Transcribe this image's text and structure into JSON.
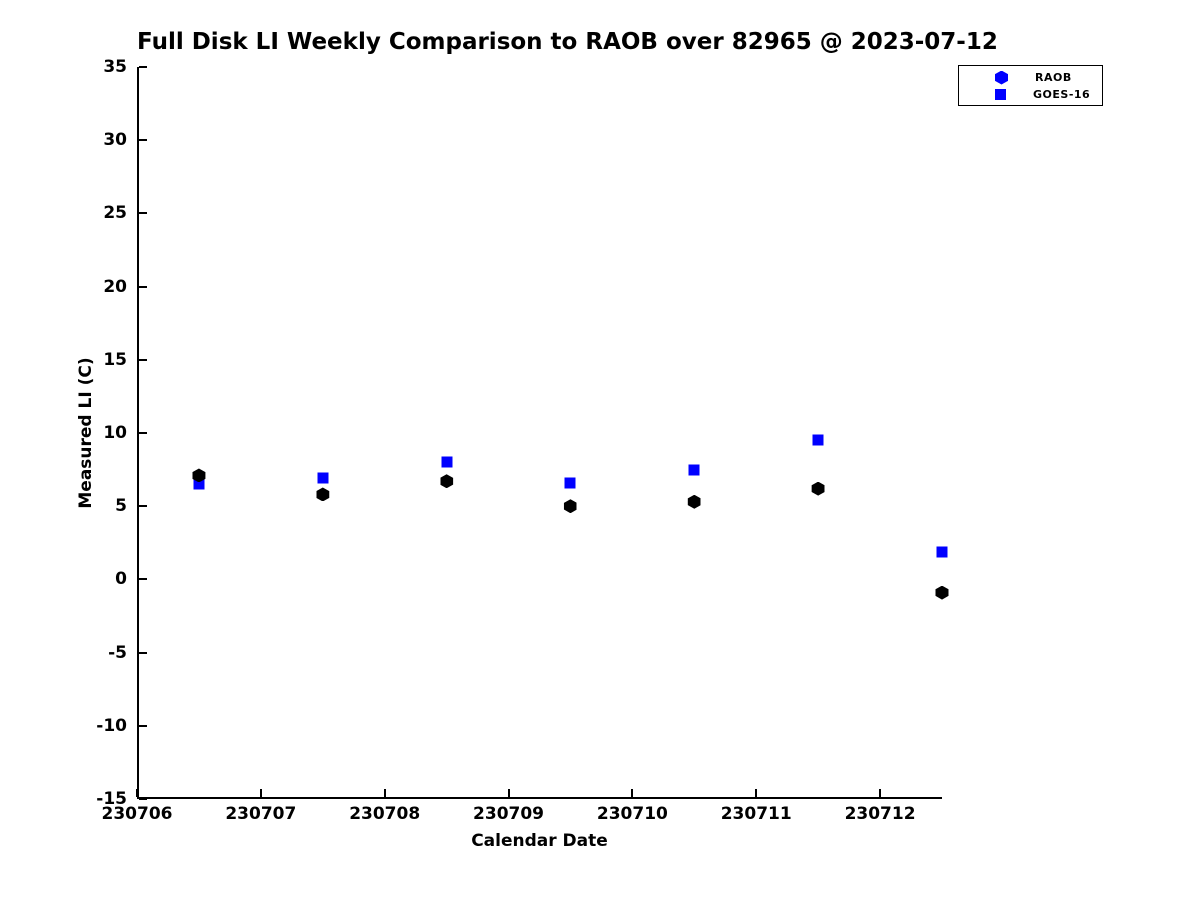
{
  "chart_data": {
    "type": "scatter",
    "title": "Full Disk LI Weekly Comparison to RAOB over 82965 @ 2023-07-12",
    "xlabel": "Calendar Date",
    "ylabel": "Measured LI (C)",
    "xlim": [
      230706,
      230712.5
    ],
    "ylim": [
      -15,
      35
    ],
    "x_ticks": [
      230706,
      230707,
      230708,
      230709,
      230710,
      230711,
      230712
    ],
    "y_ticks": [
      -15,
      -10,
      -5,
      0,
      5,
      10,
      15,
      20,
      25,
      30,
      35
    ],
    "grid": false,
    "axis_color": "#000000",
    "legend": {
      "position": "outside-top-right",
      "entries": [
        {
          "label": "RAOB",
          "marker": "hexagon",
          "color": "#0000FF"
        },
        {
          "label": "GOES-16",
          "marker": "square",
          "color": "#0000FF"
        }
      ]
    },
    "series": [
      {
        "name": "GOES-16",
        "marker": "square",
        "color": "#0000FF",
        "x": [
          230706.5,
          230707.5,
          230708.5,
          230709.5,
          230710.5,
          230711.5,
          230712.5
        ],
        "y": [
          6.5,
          6.9,
          8.0,
          6.6,
          7.5,
          9.5,
          1.9
        ]
      },
      {
        "name": "RAOB",
        "marker": "hexagon",
        "color": "#000000",
        "x": [
          230706.5,
          230707.5,
          230708.5,
          230709.5,
          230710.5,
          230711.5,
          230712.5
        ],
        "y": [
          7.1,
          5.8,
          6.7,
          5.0,
          5.3,
          6.2,
          -0.9
        ]
      }
    ]
  }
}
